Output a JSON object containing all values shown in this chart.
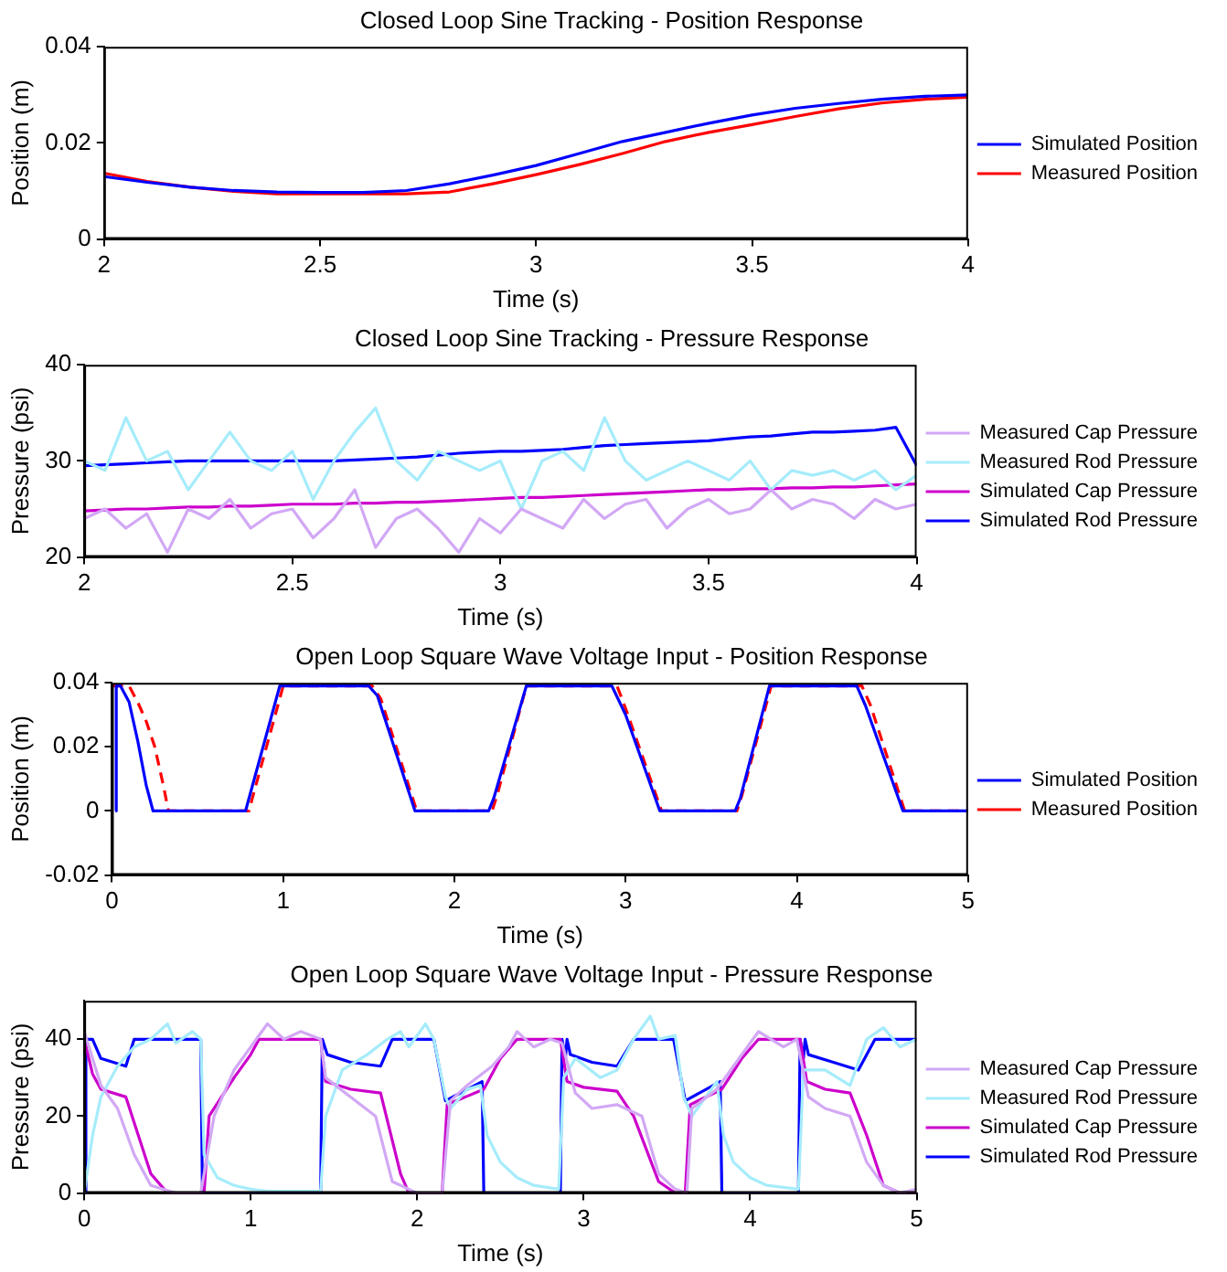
{
  "chart_data": [
    {
      "type": "line",
      "title": "Closed Loop Sine Tracking - Position Response",
      "xlabel": "Time (s)",
      "ylabel": "Position (m)",
      "xlim": [
        2,
        4
      ],
      "xticks": [
        2,
        2.5,
        3,
        3.5,
        4
      ],
      "ylim": [
        0,
        0.04
      ],
      "yticks": [
        0,
        0.02,
        0.04
      ],
      "grid": false,
      "legend": "right",
      "series": [
        {
          "name": "Simulated Position",
          "color": "#0000ff",
          "x": [
            2,
            2.1,
            2.2,
            2.3,
            2.4,
            2.5,
            2.6,
            2.7,
            2.8,
            2.9,
            3,
            3.1,
            3.2,
            3.3,
            3.4,
            3.5,
            3.6,
            3.7,
            3.8,
            3.9,
            4
          ],
          "values": [
            0.013,
            0.0118,
            0.0108,
            0.0101,
            0.0098,
            0.0097,
            0.0097,
            0.0101,
            0.0115,
            0.0133,
            0.0153,
            0.0178,
            0.0203,
            0.0222,
            0.0241,
            0.0258,
            0.0272,
            0.0282,
            0.0291,
            0.0297,
            0.03
          ]
        },
        {
          "name": "Measured Position",
          "color": "#ff0000",
          "x": [
            2,
            2.1,
            2.2,
            2.3,
            2.4,
            2.5,
            2.6,
            2.7,
            2.8,
            2.9,
            3,
            3.1,
            3.2,
            3.3,
            3.4,
            3.5,
            3.6,
            3.7,
            3.8,
            3.9,
            4
          ],
          "values": [
            0.0137,
            0.012,
            0.0108,
            0.0099,
            0.0094,
            0.0094,
            0.0094,
            0.0094,
            0.0098,
            0.0115,
            0.0134,
            0.0155,
            0.0178,
            0.0203,
            0.0222,
            0.0238,
            0.0255,
            0.0271,
            0.0283,
            0.0291,
            0.0295
          ]
        }
      ]
    },
    {
      "type": "line",
      "title": "Closed Loop Sine Tracking - Pressure Response",
      "xlabel": "Time (s)",
      "ylabel": "Pressure (psi)",
      "xlim": [
        2,
        4
      ],
      "xticks": [
        2,
        2.5,
        3,
        3.5,
        4
      ],
      "ylim": [
        20,
        40
      ],
      "yticks": [
        20,
        30,
        40
      ],
      "grid": false,
      "legend": "right",
      "series": [
        {
          "name": "Measured Cap Pressure",
          "color": "#d2a8f5",
          "x": [
            2,
            2.05,
            2.1,
            2.15,
            2.2,
            2.25,
            2.3,
            2.35,
            2.4,
            2.45,
            2.5,
            2.55,
            2.6,
            2.65,
            2.7,
            2.75,
            2.8,
            2.85,
            2.9,
            2.95,
            3,
            3.05,
            3.1,
            3.15,
            3.2,
            3.25,
            3.3,
            3.35,
            3.4,
            3.45,
            3.5,
            3.55,
            3.6,
            3.65,
            3.7,
            3.75,
            3.8,
            3.85,
            3.9,
            3.95,
            4
          ],
          "values": [
            24,
            25,
            23,
            24.5,
            20.5,
            25,
            24,
            26,
            23,
            24.5,
            25,
            22,
            24,
            27,
            21,
            24,
            25,
            23,
            20.5,
            24,
            22.5,
            25,
            24,
            23,
            26,
            24,
            25.5,
            26,
            23,
            25,
            26,
            24.5,
            25,
            27,
            25,
            26,
            25.5,
            24,
            26,
            25,
            25.5
          ]
        },
        {
          "name": "Measured Rod Pressure",
          "color": "#a6ecfb",
          "x": [
            2,
            2.05,
            2.1,
            2.15,
            2.2,
            2.25,
            2.3,
            2.35,
            2.4,
            2.45,
            2.5,
            2.55,
            2.6,
            2.65,
            2.7,
            2.75,
            2.8,
            2.85,
            2.9,
            2.95,
            3,
            3.05,
            3.1,
            3.15,
            3.2,
            3.25,
            3.3,
            3.35,
            3.4,
            3.45,
            3.5,
            3.55,
            3.6,
            3.65,
            3.7,
            3.75,
            3.8,
            3.85,
            3.9,
            3.95,
            4
          ],
          "values": [
            30,
            29,
            34.5,
            30,
            31,
            27,
            30,
            33,
            30,
            29,
            31,
            26,
            30,
            33,
            35.5,
            30,
            28,
            31,
            30,
            29,
            30,
            25,
            30,
            31,
            29,
            34.5,
            30,
            28,
            29,
            30,
            29,
            28,
            30,
            27,
            29,
            28.5,
            29,
            28,
            29,
            27,
            28.5
          ]
        },
        {
          "name": "Simulated Cap Pressure",
          "color": "#cc00cc",
          "x": [
            2,
            2.05,
            2.1,
            2.15,
            2.2,
            2.25,
            2.3,
            2.35,
            2.4,
            2.45,
            2.5,
            2.55,
            2.6,
            2.65,
            2.7,
            2.75,
            2.8,
            2.85,
            2.9,
            2.95,
            3,
            3.05,
            3.1,
            3.15,
            3.2,
            3.25,
            3.3,
            3.35,
            3.4,
            3.45,
            3.5,
            3.55,
            3.6,
            3.65,
            3.7,
            3.75,
            3.8,
            3.85,
            3.9,
            3.95,
            4
          ],
          "values": [
            24.8,
            24.9,
            25,
            25,
            25.1,
            25.2,
            25.2,
            25.3,
            25.3,
            25.4,
            25.5,
            25.5,
            25.5,
            25.6,
            25.6,
            25.7,
            25.7,
            25.8,
            25.9,
            26,
            26.1,
            26.2,
            26.2,
            26.3,
            26.4,
            26.5,
            26.6,
            26.7,
            26.8,
            26.9,
            27,
            27,
            27.1,
            27.1,
            27.2,
            27.2,
            27.3,
            27.3,
            27.4,
            27.5,
            27.6
          ]
        },
        {
          "name": "Simulated Rod Pressure",
          "color": "#0000ff",
          "x": [
            2,
            2.05,
            2.1,
            2.15,
            2.2,
            2.25,
            2.3,
            2.35,
            2.4,
            2.45,
            2.5,
            2.55,
            2.6,
            2.65,
            2.7,
            2.75,
            2.8,
            2.85,
            2.9,
            2.95,
            3,
            3.05,
            3.1,
            3.15,
            3.2,
            3.25,
            3.3,
            3.35,
            3.4,
            3.45,
            3.5,
            3.55,
            3.6,
            3.65,
            3.7,
            3.75,
            3.8,
            3.85,
            3.9,
            3.95,
            4
          ],
          "values": [
            29.5,
            29.6,
            29.7,
            29.8,
            29.9,
            30,
            30,
            30,
            30,
            30,
            30,
            30,
            30,
            30.1,
            30.2,
            30.3,
            30.4,
            30.6,
            30.8,
            30.9,
            31,
            31,
            31.1,
            31.2,
            31.4,
            31.6,
            31.7,
            31.8,
            31.9,
            32,
            32.1,
            32.3,
            32.5,
            32.6,
            32.8,
            33,
            33,
            33.1,
            33.2,
            33.5,
            29.5
          ]
        }
      ]
    },
    {
      "type": "line",
      "title": "Open Loop Square Wave Voltage Input - Position Response",
      "xlabel": "Time (s)",
      "ylabel": "Position (m)",
      "xlim": [
        0,
        5
      ],
      "xticks": [
        0,
        1,
        2,
        3,
        4,
        5
      ],
      "ylim": [
        -0.02,
        0.04
      ],
      "yticks": [
        -0.02,
        0,
        0.02,
        0.04
      ],
      "grid": false,
      "legend": "right",
      "series": [
        {
          "name": "Simulated Position",
          "color": "#0000ff",
          "x": [
            0.02,
            0.025,
            0.05,
            0.1,
            0.15,
            0.2,
            0.24,
            0.78,
            0.98,
            1.5,
            1.55,
            1.77,
            2.2,
            2.23,
            2.42,
            2.92,
            3,
            3.2,
            3.64,
            3.67,
            3.84,
            4.35,
            4.4,
            4.62,
            5
          ],
          "values": [
            0,
            0.039,
            0.039,
            0.034,
            0.022,
            0.008,
            0,
            0,
            0.039,
            0.039,
            0.036,
            0,
            0,
            0.004,
            0.039,
            0.039,
            0.03,
            0,
            0,
            0.004,
            0.039,
            0.039,
            0.033,
            0,
            0
          ]
        },
        {
          "name": "Measured Position",
          "color": "#ff0000",
          "line_style": "dashed",
          "x": [
            0,
            0.1,
            0.15,
            0.2,
            0.25,
            0.3,
            0.33,
            0.8,
            0.82,
            1,
            1.52,
            1.57,
            1.78,
            2.22,
            2.25,
            2.42,
            2.95,
            3,
            3.21,
            3.65,
            3.68,
            3.85,
            4.38,
            4.43,
            4.63,
            5
          ],
          "values": [
            0.039,
            0.039,
            0.034,
            0.028,
            0.02,
            0.008,
            0,
            0,
            0.004,
            0.039,
            0.039,
            0.035,
            0,
            0,
            0.005,
            0.039,
            0.039,
            0.032,
            0,
            0,
            0.005,
            0.039,
            0.039,
            0.033,
            0,
            0
          ]
        }
      ]
    },
    {
      "type": "line",
      "title": "Open Loop Square Wave Voltage Input - Pressure Response",
      "xlabel": "Time (s)",
      "ylabel": "Pressure (psi)",
      "xlim": [
        0,
        5
      ],
      "xticks": [
        0,
        1,
        2,
        3,
        4,
        5
      ],
      "ylim": [
        0,
        50
      ],
      "yticks": [
        0,
        20,
        40
      ],
      "grid": false,
      "legend": "right",
      "series": [
        {
          "name": "Measured Cap Pressure",
          "color": "#d2a8f5",
          "x": [
            0,
            0.05,
            0.1,
            0.2,
            0.3,
            0.4,
            0.55,
            0.7,
            0.78,
            0.9,
            1,
            1.1,
            1.2,
            1.3,
            1.42,
            1.45,
            1.6,
            1.75,
            1.85,
            2,
            2.15,
            2.2,
            2.3,
            2.45,
            2.55,
            2.6,
            2.7,
            2.8,
            2.87,
            2.95,
            3.05,
            3.2,
            3.35,
            3.45,
            3.55,
            3.62,
            3.65,
            3.8,
            3.9,
            4,
            4.05,
            4.2,
            4.28,
            4.35,
            4.45,
            4.6,
            4.7,
            4.8,
            4.9,
            5
          ],
          "values": [
            42,
            35,
            28,
            22,
            10,
            2,
            0,
            0,
            20,
            32,
            38,
            44,
            40,
            42,
            40,
            30,
            25,
            20,
            3,
            0,
            0,
            24,
            28,
            33,
            38,
            42,
            38,
            40,
            39,
            26,
            22,
            23,
            20,
            5,
            1,
            0,
            22,
            27,
            33,
            39,
            42,
            38,
            40,
            25,
            22,
            20,
            8,
            2,
            0,
            1
          ]
        },
        {
          "name": "Measured Rod Pressure",
          "color": "#a6ecfb",
          "x": [
            0,
            0.05,
            0.1,
            0.2,
            0.3,
            0.4,
            0.5,
            0.55,
            0.65,
            0.7,
            0.72,
            0.8,
            0.9,
            1,
            1.1,
            1.3,
            1.42,
            1.45,
            1.55,
            1.7,
            1.82,
            1.9,
            1.95,
            2.05,
            2.1,
            2.17,
            2.2,
            2.3,
            2.38,
            2.42,
            2.5,
            2.6,
            2.7,
            2.85,
            2.88,
            2.95,
            3.1,
            3.2,
            3.3,
            3.4,
            3.45,
            3.55,
            3.6,
            3.65,
            3.8,
            3.84,
            3.9,
            4,
            4.1,
            4.29,
            4.32,
            4.45,
            4.6,
            4.7,
            4.8,
            4.9,
            5
          ],
          "values": [
            0,
            15,
            25,
            33,
            38,
            40,
            44,
            39,
            42,
            40,
            10,
            4,
            2,
            1,
            0.5,
            0.5,
            0.5,
            20,
            32,
            36,
            40,
            42,
            38,
            44,
            40,
            25,
            22,
            27,
            28,
            15,
            8,
            4,
            2,
            1,
            30,
            35,
            30,
            32,
            40,
            46,
            40,
            41,
            25,
            20,
            29,
            15,
            8,
            4,
            2,
            1,
            32,
            32,
            28,
            40,
            43,
            38,
            40
          ]
        },
        {
          "name": "Simulated Cap Pressure",
          "color": "#cc00cc",
          "x": [
            0,
            0.05,
            0.1,
            0.25,
            0.4,
            0.5,
            0.72,
            0.75,
            0.9,
            1,
            1.05,
            1.42,
            1.45,
            1.6,
            1.78,
            1.9,
            1.95,
            2.15,
            2.18,
            2.4,
            2.5,
            2.6,
            2.86,
            2.9,
            3,
            3.2,
            3.3,
            3.45,
            3.55,
            3.61,
            3.64,
            3.83,
            3.95,
            4.05,
            4.3,
            4.34,
            4.45,
            4.6,
            4.7,
            4.8,
            4.9,
            5
          ],
          "values": [
            40,
            31,
            27,
            25,
            5,
            0,
            0,
            20,
            30,
            36,
            40,
            40,
            29,
            27,
            26,
            5,
            0,
            0,
            23,
            27,
            35,
            40,
            40,
            29,
            27.5,
            26.5,
            20,
            3,
            0,
            0,
            23,
            27,
            35,
            40,
            40,
            29,
            27,
            26,
            15,
            2,
            0,
            0
          ]
        },
        {
          "name": "Simulated Rod Pressure",
          "color": "#0000ff",
          "x": [
            0,
            0.01,
            0.05,
            0.1,
            0.25,
            0.3,
            0.7,
            0.71,
            1.42,
            1.43,
            1.46,
            1.6,
            1.78,
            1.85,
            2.1,
            2.17,
            2.39,
            2.4,
            2.86,
            2.87,
            2.89,
            2.9,
            2.92,
            3.05,
            3.2,
            3.3,
            3.54,
            3.61,
            3.82,
            3.83,
            4.29,
            4.3,
            4.32,
            4.33,
            4.35,
            4.5,
            4.65,
            4.75,
            5
          ],
          "values": [
            0,
            40,
            40,
            35,
            33,
            40,
            40,
            0,
            0,
            40,
            36,
            34,
            33,
            40,
            40,
            24,
            29,
            0,
            0,
            40,
            35,
            40,
            36,
            34,
            33,
            40,
            40,
            24,
            29,
            0,
            0,
            40,
            35,
            40,
            36,
            34,
            32,
            40,
            40
          ]
        }
      ]
    }
  ]
}
